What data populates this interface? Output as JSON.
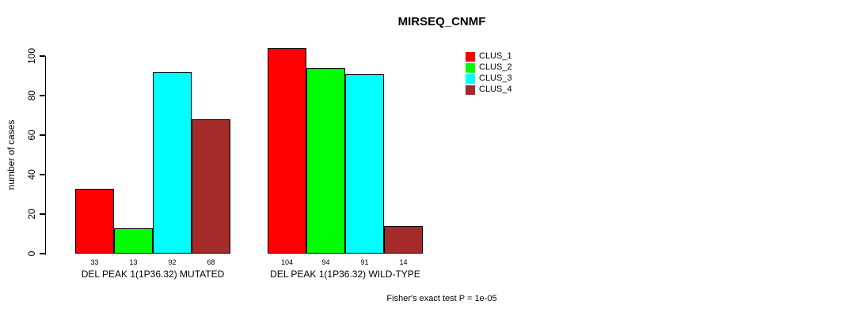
{
  "chart_data": {
    "type": "bar",
    "title": "MIRSEQ_CNMF",
    "ylabel": "number of cases",
    "xlabel": "",
    "ylim": [
      0,
      100
    ],
    "yticks": [
      0,
      20,
      40,
      60,
      80,
      100
    ],
    "grid": false,
    "legend_position": "right-outside",
    "categories": [
      "DEL PEAK 1(1P36.32) MUTATED",
      "DEL PEAK 1(1P36.32) WILD-TYPE"
    ],
    "series": [
      {
        "name": "CLUS_1",
        "color": "#FF0000",
        "values": [
          33,
          104
        ]
      },
      {
        "name": "CLUS_2",
        "color": "#00FF00",
        "values": [
          13,
          94
        ]
      },
      {
        "name": "CLUS_3",
        "color": "#00FFFF",
        "values": [
          92,
          91
        ]
      },
      {
        "name": "CLUS_4",
        "color": "#A52A2A",
        "values": [
          68,
          14
        ]
      }
    ],
    "show_value_labels": true,
    "annotation": "Fisher's exact test P = 1e-05",
    "axis_color": "#000000",
    "text_color": "#000000",
    "background": "#FFFFFF"
  }
}
